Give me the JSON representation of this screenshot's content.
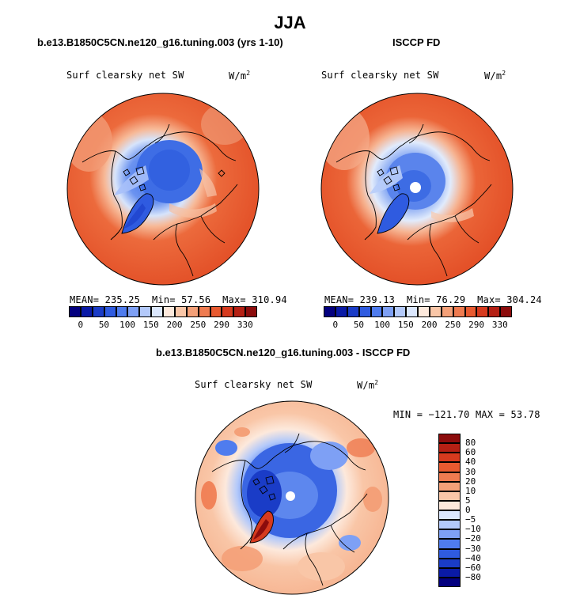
{
  "figure": {
    "title": "JJA"
  },
  "colors": {
    "bg": "#ffffff",
    "coast": "#000000"
  },
  "chart_data": [
    {
      "type": "heatmap",
      "title": "b.e13.B1850C5CN.ne120_g16.tuning.003 (yrs 1-10)",
      "variable": "Surf clearsky net SW",
      "units": "W/m",
      "units_exp": "2",
      "projection": "north-polar-stereographic",
      "stats": {
        "mean_label": "MEAN=",
        "mean": "235.25",
        "min_label": "Min=",
        "min": "57.56",
        "max_label": "Max=",
        "max": "310.94"
      },
      "colorbar": {
        "orientation": "horizontal",
        "labels": [
          "0",
          "50",
          "100",
          "150",
          "200",
          "250",
          "290",
          "330"
        ],
        "colors": [
          "#03007f",
          "#0a1aa6",
          "#1a3cc7",
          "#2f5be0",
          "#4f7cee",
          "#7ea0f5",
          "#b3c9fa",
          "#dbe7fd",
          "#fde9dc",
          "#f9c6a7",
          "#f4a078",
          "#ef7b50",
          "#e85a30",
          "#d63a1e",
          "#b52014",
          "#8c0c0c"
        ]
      }
    },
    {
      "type": "heatmap",
      "title": "ISCCP FD",
      "variable": "Surf clearsky net SW",
      "units": "W/m",
      "units_exp": "2",
      "projection": "north-polar-stereographic",
      "stats": {
        "mean_label": "MEAN=",
        "mean": "239.13",
        "min_label": "Min=",
        "min": "76.29",
        "max_label": "Max=",
        "max": "304.24"
      },
      "colorbar": {
        "orientation": "horizontal",
        "labels": [
          "0",
          "50",
          "100",
          "150",
          "200",
          "250",
          "290",
          "330"
        ],
        "colors": [
          "#03007f",
          "#0a1aa6",
          "#1a3cc7",
          "#2f5be0",
          "#4f7cee",
          "#7ea0f5",
          "#b3c9fa",
          "#dbe7fd",
          "#fde9dc",
          "#f9c6a7",
          "#f4a078",
          "#ef7b50",
          "#e85a30",
          "#d63a1e",
          "#b52014",
          "#8c0c0c"
        ]
      }
    },
    {
      "type": "heatmap",
      "title": "b.e13.B1850C5CN.ne120_g16.tuning.003 - ISCCP FD",
      "variable": "Surf clearsky net SW",
      "units": "W/m",
      "units_exp": "2",
      "projection": "north-polar-stereographic",
      "stats": {
        "text": "MIN = −121.70 MAX =  53.78"
      },
      "colorbar": {
        "orientation": "vertical",
        "labels": [
          "80",
          "60",
          "40",
          "30",
          "20",
          "10",
          "5",
          "0",
          "−5",
          "−10",
          "−20",
          "−30",
          "−40",
          "−60",
          "−80"
        ],
        "colors": [
          "#8c0c0c",
          "#b52014",
          "#d63a1e",
          "#e85a30",
          "#ef7b50",
          "#f4a078",
          "#f9c6a7",
          "#fde9dc",
          "#dbe7fd",
          "#b3c9fa",
          "#7ea0f5",
          "#4f7cee",
          "#2f5be0",
          "#1a3cc7",
          "#0a1aa6",
          "#03007f"
        ]
      }
    }
  ]
}
